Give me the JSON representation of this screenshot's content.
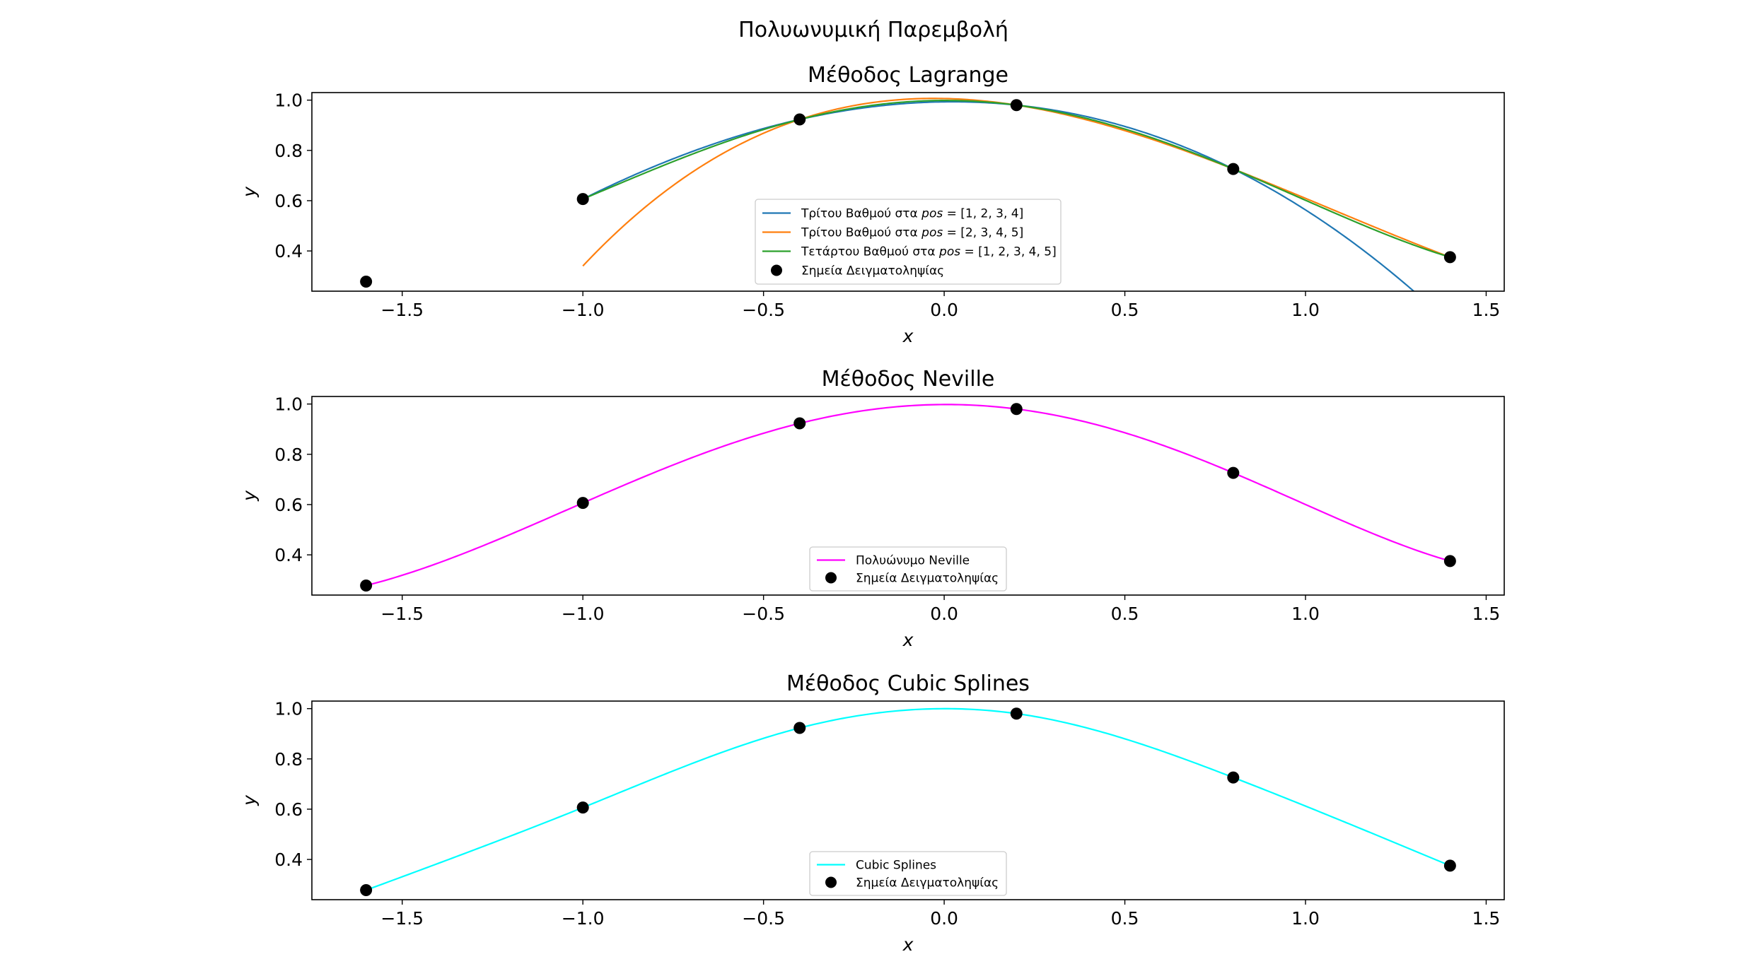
{
  "figure_title": "Πολυωνυμική Παρεμβολή",
  "chart_data": [
    {
      "type": "line",
      "title": "Μέθοδος Lagrange",
      "xlabel": "x",
      "ylabel": "y",
      "xlim": [
        -1.75,
        1.55
      ],
      "ylim": [
        0.24,
        1.03
      ],
      "xticks": [
        -1.5,
        -1.0,
        -0.5,
        0.0,
        0.5,
        1.0,
        1.5
      ],
      "xtick_labels": [
        "−1.5",
        "−1.0",
        "−0.5",
        "0.0",
        "0.5",
        "1.0",
        "1.5"
      ],
      "yticks": [
        0.4,
        0.6,
        0.8,
        1.0
      ],
      "ytick_labels": [
        "0.4",
        "0.6",
        "0.8",
        "1.0"
      ],
      "legend_position": "lower-center",
      "series": [
        {
          "name": "Τρίτου Βαθμού στα pos = [1, 2, 3, 4]",
          "color": "#1f77b4",
          "interp": "lagrange",
          "points": [
            [
              -1.0,
              0.6065
            ],
            [
              -0.4,
              0.9231
            ],
            [
              0.2,
              0.9802
            ],
            [
              0.8,
              0.7261
            ]
          ],
          "domain": [
            -1.0,
            1.4
          ]
        },
        {
          "name": "Τρίτου Βαθμού στα pos = [2, 3, 4, 5]",
          "color": "#ff7f0e",
          "interp": "lagrange",
          "points": [
            [
              -0.4,
              0.9231
            ],
            [
              0.2,
              0.9802
            ],
            [
              0.8,
              0.7261
            ],
            [
              1.4,
              0.3753
            ]
          ],
          "domain": [
            -1.0,
            1.4
          ]
        },
        {
          "name": "Τετάρτου Βαθμού στα pos = [1, 2, 3, 4, 5]",
          "color": "#2ca02c",
          "interp": "lagrange",
          "points": [
            [
              -1.0,
              0.6065
            ],
            [
              -0.4,
              0.9231
            ],
            [
              0.2,
              0.9802
            ],
            [
              0.8,
              0.7261
            ],
            [
              1.4,
              0.3753
            ]
          ],
          "domain": [
            -1.0,
            1.4
          ]
        }
      ],
      "scatter": {
        "name": "Σημεία Δειγματοληψίας",
        "color": "#000000",
        "x": [
          -1.6,
          -1.0,
          -0.4,
          0.2,
          0.8,
          1.4
        ],
        "y": [
          0.278,
          0.6065,
          0.9231,
          0.9802,
          0.7261,
          0.3753
        ]
      }
    },
    {
      "type": "line",
      "title": "Μέθοδος Neville",
      "xlabel": "x",
      "ylabel": "y",
      "xlim": [
        -1.75,
        1.55
      ],
      "ylim": [
        0.24,
        1.03
      ],
      "xticks": [
        -1.5,
        -1.0,
        -0.5,
        0.0,
        0.5,
        1.0,
        1.5
      ],
      "xtick_labels": [
        "−1.5",
        "−1.0",
        "−0.5",
        "0.0",
        "0.5",
        "1.0",
        "1.5"
      ],
      "yticks": [
        0.4,
        0.6,
        0.8,
        1.0
      ],
      "ytick_labels": [
        "0.4",
        "0.6",
        "0.8",
        "1.0"
      ],
      "legend_position": "lower-center",
      "series": [
        {
          "name": "Πολυώνυμο Neville",
          "color": "#ff00ff",
          "interp": "lagrange",
          "points": [
            [
              -1.6,
              0.278
            ],
            [
              -1.0,
              0.6065
            ],
            [
              -0.4,
              0.9231
            ],
            [
              0.2,
              0.9802
            ],
            [
              0.8,
              0.7261
            ],
            [
              1.4,
              0.3753
            ]
          ],
          "domain": [
            -1.6,
            1.4
          ]
        }
      ],
      "scatter": {
        "name": "Σημεία Δειγματοληψίας",
        "color": "#000000",
        "x": [
          -1.6,
          -1.0,
          -0.4,
          0.2,
          0.8,
          1.4
        ],
        "y": [
          0.278,
          0.6065,
          0.9231,
          0.9802,
          0.7261,
          0.3753
        ]
      }
    },
    {
      "type": "line",
      "title": "Μέθοδος Cubic Splines",
      "xlabel": "x",
      "ylabel": "y",
      "xlim": [
        -1.75,
        1.55
      ],
      "ylim": [
        0.24,
        1.03
      ],
      "xticks": [
        -1.5,
        -1.0,
        -0.5,
        0.0,
        0.5,
        1.0,
        1.5
      ],
      "xtick_labels": [
        "−1.5",
        "−1.0",
        "−0.5",
        "0.0",
        "0.5",
        "1.0",
        "1.5"
      ],
      "yticks": [
        0.4,
        0.6,
        0.8,
        1.0
      ],
      "ytick_labels": [
        "0.4",
        "0.6",
        "0.8",
        "1.0"
      ],
      "legend_position": "lower-center",
      "series": [
        {
          "name": "Cubic Splines",
          "color": "#00ffff",
          "interp": "spline",
          "points": [
            [
              -1.6,
              0.278
            ],
            [
              -1.0,
              0.6065
            ],
            [
              -0.4,
              0.9231
            ],
            [
              0.2,
              0.9802
            ],
            [
              0.8,
              0.7261
            ],
            [
              1.4,
              0.3753
            ]
          ],
          "domain": [
            -1.6,
            1.4
          ]
        }
      ],
      "scatter": {
        "name": "Σημεία Δειγματοληψίας",
        "color": "#000000",
        "x": [
          -1.6,
          -1.0,
          -0.4,
          0.2,
          0.8,
          1.4
        ],
        "y": [
          0.278,
          0.6065,
          0.9231,
          0.9802,
          0.7261,
          0.3753
        ]
      }
    }
  ]
}
